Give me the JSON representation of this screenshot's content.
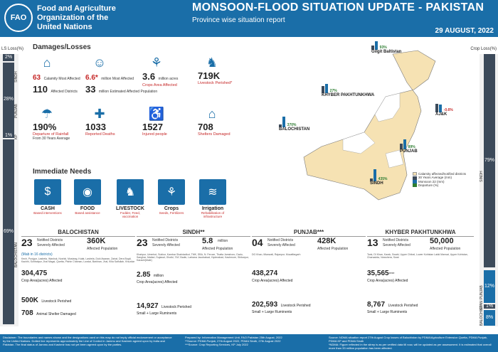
{
  "header": {
    "logo_text": "FAO",
    "org_name": [
      "Food and Agriculture",
      "Organization of the",
      "United Nations"
    ],
    "title": "MONSOON-FLOOD SITUATION UPDATE - PAKISTAN",
    "subtitle": "Province wise situation report",
    "date": "29 AUGUST, 2022"
  },
  "side_labels": {
    "left": "LS Loss(%)",
    "right": "Crop Loss(%)"
  },
  "ls_loss": [
    {
      "prov": "SINDH",
      "value": "2%"
    },
    {
      "prov": "PUNJAB",
      "value": "28%"
    },
    {
      "prov": "KP",
      "value": "1%"
    },
    {
      "prov": "BALOCHISTAN",
      "value": "69%"
    }
  ],
  "crop_loss": [
    {
      "prov": "SINDH",
      "value": "79%"
    },
    {
      "prov": "PUNJAB",
      "value": "12%"
    },
    {
      "prov": "KP",
      "value": "1%"
    },
    {
      "prov": "BALOCHISTAN",
      "value": "8%"
    }
  ],
  "damages": {
    "title": "Damages/Losses",
    "items": [
      {
        "icon": "flood-house-icon",
        "line1": "63",
        "line1_label": "Calamity Most Affected",
        "line2": "110",
        "line2_label": "Affected Districts"
      },
      {
        "icon": "person-icon",
        "line1": "6.6",
        "line1_suffix": "*",
        "line1_label": "million Most Affected",
        "line2": "33",
        "line2_label": "million Estimated Affected Population"
      },
      {
        "icon": "wheat-icon",
        "big": "3.6",
        "unit": "million acres",
        "caption": "Crops Area Affected"
      },
      {
        "icon": "cow-icon",
        "big": "719K",
        "caption": "Livestock Perished*"
      },
      {
        "icon": "rain-icon",
        "big": "190%",
        "caption": "Departure of Rainfall",
        "sub": "From 30 Years Average"
      },
      {
        "icon": "stretcher-icon",
        "big": "1033",
        "caption": "Reported Deaths"
      },
      {
        "icon": "injured-icon",
        "big": "1527",
        "caption": "Injured people"
      },
      {
        "icon": "shelter-icon",
        "big": "708",
        "caption": "Shelters Damaged"
      }
    ]
  },
  "needs": {
    "title": "Immediate Needs",
    "items": [
      {
        "icon": "cash-icon",
        "name": "CASH",
        "desc": "Based interventions"
      },
      {
        "icon": "food-icon",
        "name": "FOOD",
        "desc": "Based assistance"
      },
      {
        "icon": "livestock-icon",
        "name": "LIVESTOCK",
        "desc": "Fodder, Feed, vaccination"
      },
      {
        "icon": "crops-icon",
        "name": "Crops",
        "desc": "Seeds, Fertilizers"
      },
      {
        "icon": "irrigation-icon",
        "name": "Irrigation",
        "desc": "Rehabilitation of infrastructure"
      }
    ]
  },
  "map": {
    "callouts": [
      {
        "name": "Gilgit Baltistan",
        "pct": "93%",
        "dir": "up"
      },
      {
        "name": "KHYBER PAKHTUNKHWA",
        "pct": "27%",
        "dir": "up"
      },
      {
        "name": "AJ&K",
        "pct": "-0.6%",
        "dir": "down"
      },
      {
        "name": "BALOCHISTAN",
        "pct": "370%",
        "dir": "up"
      },
      {
        "name": "PUNJAB",
        "pct": "89%",
        "dir": "up"
      },
      {
        "name": "SINDH",
        "pct": "435%",
        "dir": "up"
      }
    ],
    "legend": {
      "calamity": "Calamity affected/notified districts",
      "avg": "30 Years Average (mm)",
      "monsoon": "Monsoon 22 (mm)",
      "departure": "Departure (%)"
    }
  },
  "panels": [
    {
      "name": "BALOCHISTAN",
      "districts_num": "23",
      "districts_label": "Notified Districts",
      "districts_sub": "Severely Affected",
      "districts_note": "(Mab in 16 districts)",
      "pop": "360K",
      "pop_label": "Affected Population",
      "list": "Kech, Punjgur, Lasbela, Washuk, Noshki, Mustang, Kalat, Lasbela, Duki Awaran, Zairat, Dera Bugti, Kachhi, Sohbatpur, Jhal Magsi, Quetta, Pishin Chaman, Loralai, Barkhan, Jhal, Killa Saifullah, Khuzdar",
      "crop": "304,475",
      "crop_label": "Crop Area(acres) Affected",
      "livestock": "500K",
      "livestock_label": "Livestock Perished",
      "shelter": "708",
      "shelter_label": "Animal Shelter Damaged"
    },
    {
      "name": "SINDH",
      "name_suffix": "**",
      "districts_num": "23",
      "districts_label": "Notified Districts",
      "districts_sub": "Severely Affected",
      "pop": "5.8",
      "pop_unit": "million",
      "pop_label": "Affected Population",
      "list": "Khairpur, Umerkot, Sukkur, Kambar Shahdadkot, TMK, SBA, N. Feroze, Thatta Jamshoro, Dadu, Sanghar, Matiari, Sujawal, Ghotki, TAY, Badin, Larkana Jacobabad, Hyderabad, Kashmore, Shikarpur, Karachi(Malir)",
      "crop": "2.85",
      "crop_unit": "million",
      "crop_label": "Crop Area(acres) Affected",
      "livestock": "14,927",
      "livestock_label": "Livestock Perished",
      "small_large": "Small + Large Ruminents"
    },
    {
      "name": "PUNJAB",
      "name_suffix": "***",
      "districts_num": "04",
      "districts_label": "Notified Districts",
      "districts_sub": "Severely Affected",
      "pop": "428K",
      "pop_label": "Affected Population",
      "list": "DG Khan, Mianwali, Rajanpur, Muzaffargarh",
      "crop": "438,274",
      "crop_label": "Crop Area(acres) Affected",
      "livestock": "202,593",
      "livestock_label": "Livestock Perished",
      "small_large": "Small + Large Ruminents"
    },
    {
      "name": "KHYBER PAKHTUNKHWA",
      "districts_num": "13",
      "districts_label": "Notified Districts",
      "districts_sub": "Severely Affected",
      "pop": "50,000",
      "pop_label": "Affected Population",
      "list": "Tank, DI Khan, Karak, Swabi, Upper Chitral, Lower Kohistan Lakki Marwat, Upper Kohistan, Charsadda, Nowshera, Swat",
      "crop": "35,565",
      "crop_suffix": "****",
      "crop_label": "Crop Area(acres) Affected",
      "livestock": "8,767",
      "livestock_label": "Livestock Perished",
      "small_large": "Small + Large Ruminents"
    }
  ],
  "footer": {
    "disclaimer": "Disclaimer: The boundaries and names shown and the designations used on this map do not imply official endorsement or acceptance by the United Nations. Dotted line represents approximately the Line of Control in Jammu and Kashmir agreed upon by India and Pakistan. The final status of Jammu and Kashmir has not yet been agreed upon by the parties.",
    "prepared": "Prepared by: Information Management Unit, FAO Pakistan 25th August, 2022",
    "source1": "**Source: PDMA Punjab, 27th August 2022, PDMA Sindh, 27th August 2022",
    "source2": "***Source: Crop Reporting Services, KP July 2022",
    "source3": "Source: NDMA situation report 27th August Crop losses of Balochistan by PDMA/Agriculture Extension Quetta, PDMA Punjab, PDMA KP and PDMA Sindh",
    "source4": "*NDMA: Figure reflected in the sitrep is as per verified data till now, will be updated as per assessment. It is estimated that overall more than 33 million population has been affected."
  }
}
